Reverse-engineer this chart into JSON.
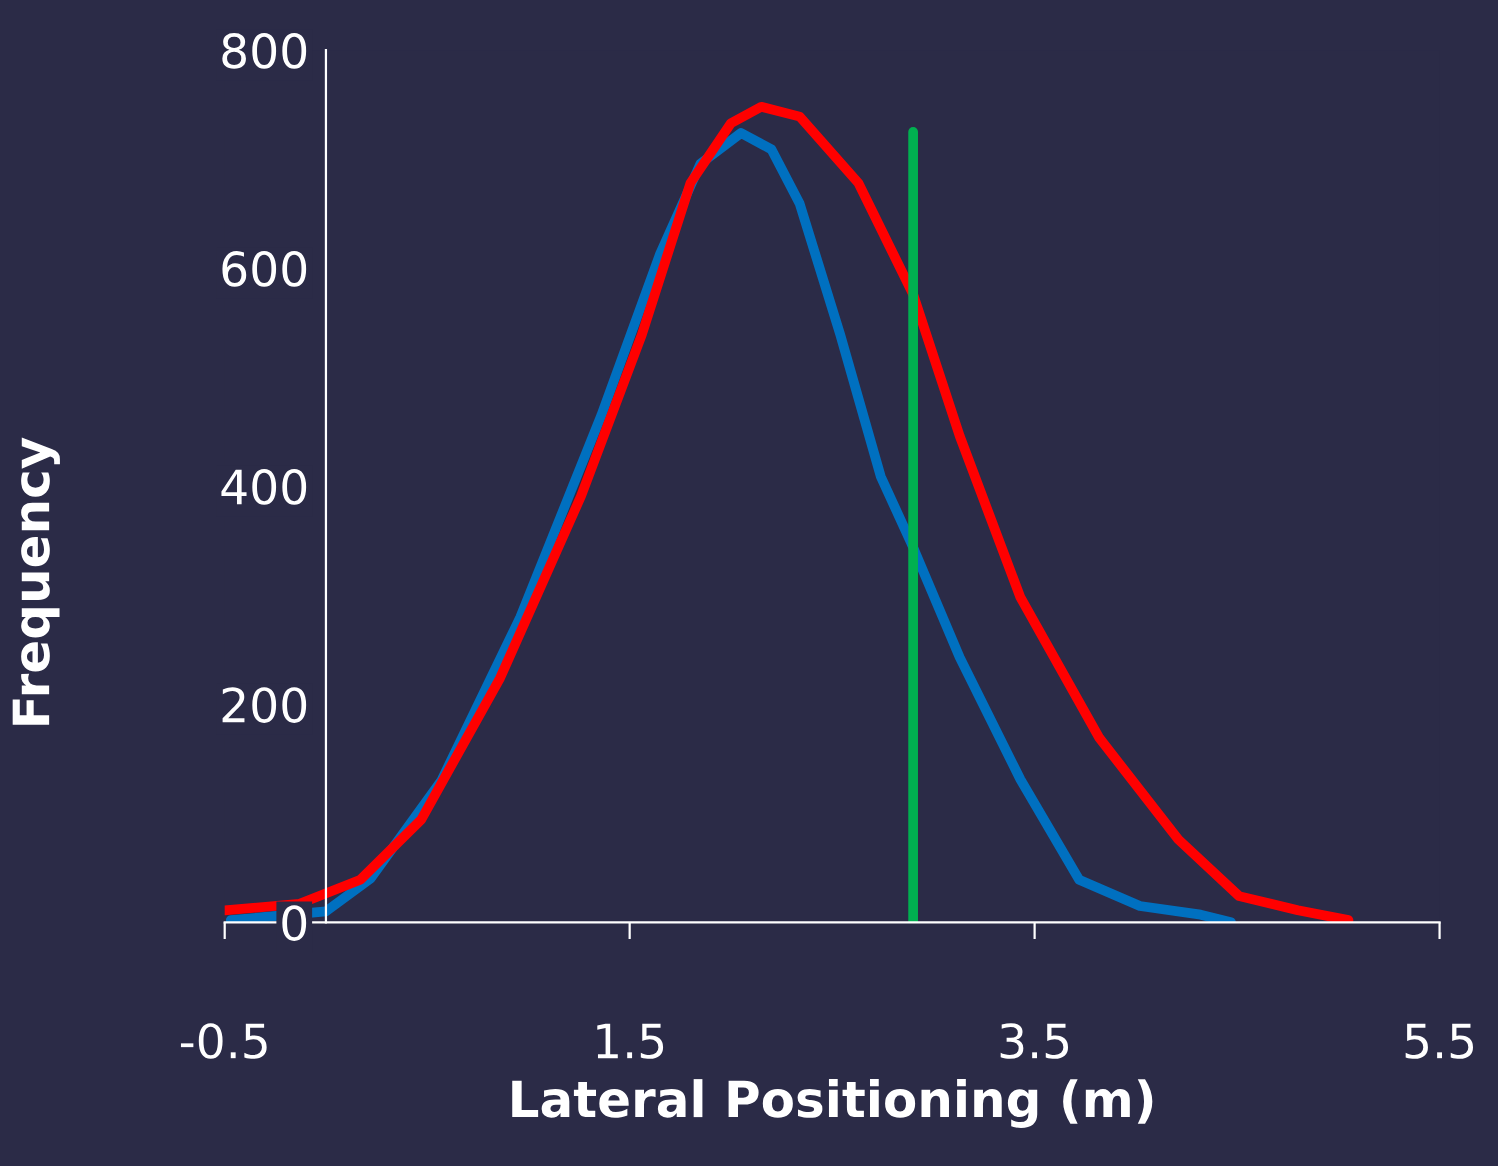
{
  "chart_data": {
    "type": "line",
    "xlabel": "Lateral Positioning (m)",
    "ylabel": "Frequency",
    "xlim": [
      -0.5,
      5.5
    ],
    "xticks": [
      -0.5,
      1.5,
      3.5,
      5.5
    ],
    "ylim": [
      0,
      800
    ],
    "yticks": [
      0,
      200,
      400,
      600,
      800
    ],
    "grid": false,
    "marker": "none",
    "line_style": "solid",
    "series": [
      {
        "color": "#0070c0",
        "x": [
          -0.47,
          0,
          0.22,
          0.57,
          0.96,
          1.36,
          1.65,
          1.85,
          2.05,
          2.2,
          2.34,
          2.54,
          2.74,
          2.9,
          3.13,
          3.43,
          3.72,
          4.02,
          4.32,
          4.47
        ],
        "values": [
          2,
          10,
          40,
          130,
          280,
          465,
          613,
          696,
          724,
          709,
          659,
          539,
          409,
          344,
          243,
          131,
          39,
          15,
          7,
          0
        ]
      },
      {
        "color": "#ff0000",
        "x": [
          -0.5,
          -0.13,
          0.17,
          0.47,
          0.86,
          1.26,
          1.56,
          1.8,
          2.0,
          2.15,
          2.34,
          2.63,
          2.9,
          3.13,
          3.43,
          3.82,
          4.21,
          4.51,
          4.8,
          5.05
        ],
        "values": [
          11,
          17,
          39,
          94,
          224,
          391,
          539,
          678,
          733,
          748,
          739,
          678,
          576,
          446,
          298,
          169,
          76,
          24,
          11,
          2
        ]
      },
      {
        "color": "#00b050",
        "x": [
          2.9,
          2.9
        ],
        "values": [
          0,
          725
        ]
      }
    ]
  }
}
